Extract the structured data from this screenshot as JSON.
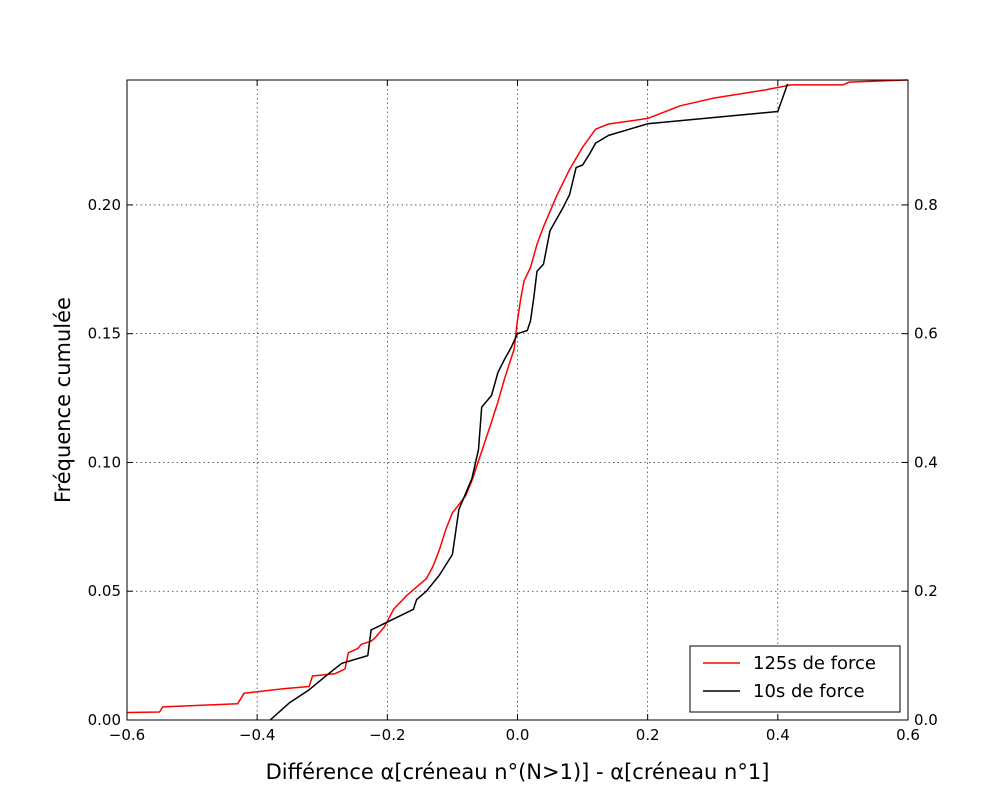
{
  "chart_data": {
    "type": "line",
    "title": "",
    "xlabel": "Différence α[créneau n°(N>1)] - α[créneau n°1]",
    "ylabel": "Fréquence cumulée",
    "xlim": [
      -0.6,
      0.6
    ],
    "ylim_left": [
      0.0,
      0.2485
    ],
    "ylim_right": [
      0.0,
      0.994
    ],
    "grid": true,
    "legend_position": "bottom-right",
    "x_ticks": [
      {
        "value": -0.6,
        "label": "−0.6"
      },
      {
        "value": -0.4,
        "label": "−0.4"
      },
      {
        "value": -0.2,
        "label": "−0.2"
      },
      {
        "value": 0.0,
        "label": "0.0"
      },
      {
        "value": 0.2,
        "label": "0.2"
      },
      {
        "value": 0.4,
        "label": "0.4"
      },
      {
        "value": 0.6,
        "label": "0.6"
      }
    ],
    "y_ticks_left": [
      {
        "value": 0.0,
        "label": "0.00"
      },
      {
        "value": 0.05,
        "label": "0.05"
      },
      {
        "value": 0.1,
        "label": "0.10"
      },
      {
        "value": 0.15,
        "label": "0.15"
      },
      {
        "value": 0.2,
        "label": "0.20"
      }
    ],
    "y_ticks_right": [
      {
        "value": 0.0,
        "label": "0.0"
      },
      {
        "value": 0.2,
        "label": "0.2"
      },
      {
        "value": 0.4,
        "label": "0.4"
      },
      {
        "value": 0.6,
        "label": "0.6"
      },
      {
        "value": 0.8,
        "label": "0.8"
      }
    ],
    "series": [
      {
        "name": "125s de force",
        "color": "#ff0000",
        "axis": "left",
        "points": [
          [
            -0.6,
            0.0029
          ],
          [
            -0.55,
            0.0031
          ],
          [
            -0.545,
            0.0051
          ],
          [
            -0.43,
            0.0063
          ],
          [
            -0.42,
            0.0104
          ],
          [
            -0.36,
            0.0121
          ],
          [
            -0.32,
            0.013
          ],
          [
            -0.315,
            0.0171
          ],
          [
            -0.28,
            0.018
          ],
          [
            -0.265,
            0.0198
          ],
          [
            -0.26,
            0.0261
          ],
          [
            -0.245,
            0.0278
          ],
          [
            -0.24,
            0.0294
          ],
          [
            -0.225,
            0.0306
          ],
          [
            -0.22,
            0.0316
          ],
          [
            -0.205,
            0.036
          ],
          [
            -0.19,
            0.0431
          ],
          [
            -0.17,
            0.0484
          ],
          [
            -0.14,
            0.0549
          ],
          [
            -0.13,
            0.0596
          ],
          [
            -0.12,
            0.0661
          ],
          [
            -0.11,
            0.0741
          ],
          [
            -0.1,
            0.0804
          ],
          [
            -0.08,
            0.0869
          ],
          [
            -0.07,
            0.0929
          ],
          [
            -0.055,
            0.1043
          ],
          [
            -0.04,
            0.1157
          ],
          [
            -0.03,
            0.1236
          ],
          [
            -0.02,
            0.1325
          ],
          [
            -0.005,
            0.1441
          ],
          [
            0.0,
            0.1553
          ],
          [
            0.005,
            0.1637
          ],
          [
            0.01,
            0.1704
          ],
          [
            0.02,
            0.1757
          ],
          [
            0.03,
            0.1847
          ],
          [
            0.04,
            0.1915
          ],
          [
            0.06,
            0.2034
          ],
          [
            0.08,
            0.2138
          ],
          [
            0.1,
            0.2224
          ],
          [
            0.12,
            0.2294
          ],
          [
            0.14,
            0.2314
          ],
          [
            0.2,
            0.2336
          ],
          [
            0.25,
            0.2385
          ],
          [
            0.3,
            0.2414
          ],
          [
            0.38,
            0.2446
          ],
          [
            0.42,
            0.2466
          ],
          [
            0.5,
            0.2466
          ],
          [
            0.51,
            0.2477
          ],
          [
            0.6,
            0.2485
          ]
        ]
      },
      {
        "name": "10s de force",
        "color": "#000000",
        "axis": "right",
        "points": [
          [
            -0.38,
            0.0
          ],
          [
            -0.35,
            0.027
          ],
          [
            -0.32,
            0.047
          ],
          [
            -0.29,
            0.072
          ],
          [
            -0.27,
            0.088
          ],
          [
            -0.23,
            0.1
          ],
          [
            -0.225,
            0.14
          ],
          [
            -0.2,
            0.152
          ],
          [
            -0.16,
            0.172
          ],
          [
            -0.155,
            0.187
          ],
          [
            -0.14,
            0.2
          ],
          [
            -0.12,
            0.225
          ],
          [
            -0.1,
            0.257
          ],
          [
            -0.09,
            0.327
          ],
          [
            -0.07,
            0.375
          ],
          [
            -0.06,
            0.42
          ],
          [
            -0.055,
            0.486
          ],
          [
            -0.04,
            0.504
          ],
          [
            -0.03,
            0.54
          ],
          [
            -0.02,
            0.56
          ],
          [
            -0.01,
            0.578
          ],
          [
            0.0,
            0.6
          ],
          [
            0.015,
            0.605
          ],
          [
            0.02,
            0.62
          ],
          [
            0.025,
            0.656
          ],
          [
            0.03,
            0.697
          ],
          [
            0.04,
            0.708
          ],
          [
            0.05,
            0.76
          ],
          [
            0.07,
            0.796
          ],
          [
            0.08,
            0.816
          ],
          [
            0.09,
            0.858
          ],
          [
            0.1,
            0.862
          ],
          [
            0.11,
            0.878
          ],
          [
            0.12,
            0.896
          ],
          [
            0.14,
            0.908
          ],
          [
            0.2,
            0.926
          ],
          [
            0.4,
            0.945
          ],
          [
            0.415,
            0.988
          ]
        ]
      }
    ]
  }
}
